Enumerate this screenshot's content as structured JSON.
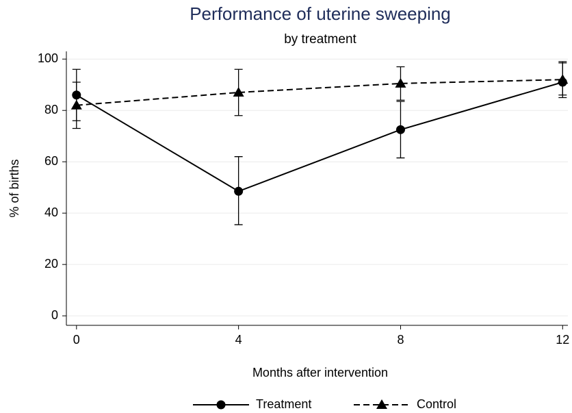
{
  "chart_data": {
    "type": "line",
    "title": "Performance of uterine sweeping",
    "subtitle": "by treatment",
    "x_label": "Months after intervention",
    "y_label": "% of births",
    "x": [
      0,
      4,
      8,
      12
    ],
    "series": [
      {
        "name": "Treatment",
        "color": "#000000",
        "dash": "solid",
        "marker": "circle",
        "values": [
          86,
          48.5,
          72.5,
          91
        ],
        "ci_low": [
          76,
          35.5,
          61.5,
          85
        ],
        "ci_high": [
          96,
          62,
          83.5,
          98.5
        ]
      },
      {
        "name": "Control",
        "color": "#000000",
        "dash": "dashed",
        "marker": "triangle",
        "values": [
          82,
          87,
          90.5,
          92
        ],
        "ci_low": [
          73,
          78,
          84,
          86
        ],
        "ci_high": [
          91,
          96,
          97,
          99
        ]
      }
    ],
    "xlim": [
      -0.25,
      12.13
    ],
    "xticks": [
      0,
      4,
      8,
      12
    ],
    "ylim": [
      -3.7,
      103
    ],
    "yticks": [
      0,
      20,
      40,
      60,
      80,
      100
    ],
    "grid": true,
    "legend": "bottom"
  }
}
